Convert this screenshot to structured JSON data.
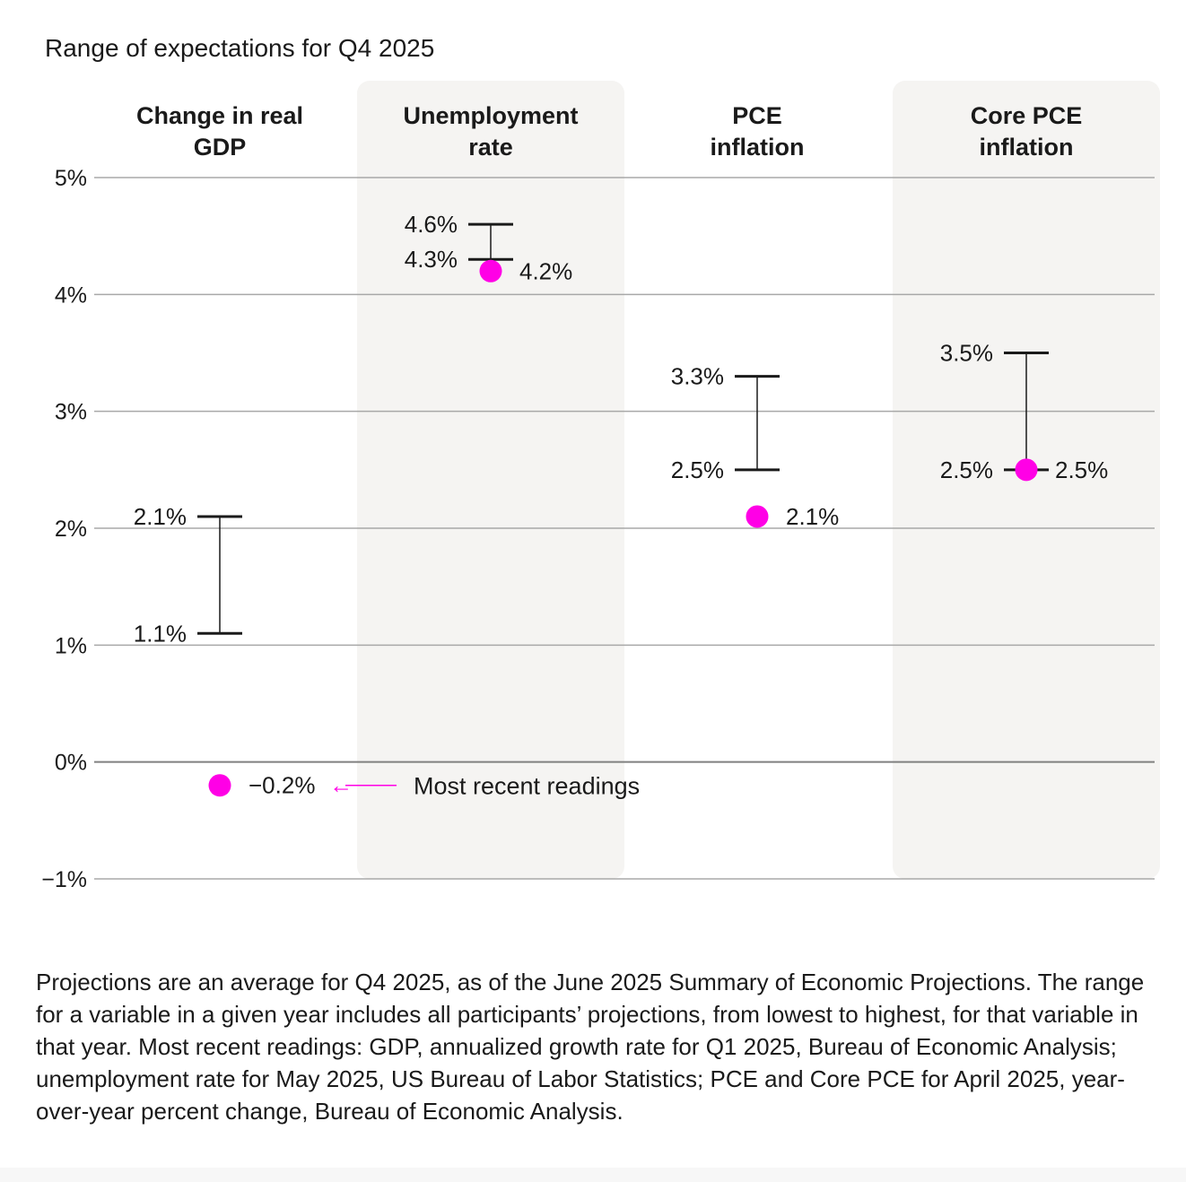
{
  "chart_data": {
    "type": "range",
    "title": "Range of expectations for Q4 2025",
    "ylim": [
      -1,
      5
    ],
    "yticks": [
      {
        "value": 5,
        "label": "5%"
      },
      {
        "value": 4,
        "label": "4%"
      },
      {
        "value": 3,
        "label": "3%"
      },
      {
        "value": 2,
        "label": "2%"
      },
      {
        "value": 1,
        "label": "1%"
      },
      {
        "value": 0,
        "label": "0%"
      },
      {
        "value": -1,
        "label": "−1%"
      }
    ],
    "grid": true,
    "categories": [
      {
        "name_lines": [
          "Change in real",
          "GDP"
        ],
        "shaded": false,
        "low": 1.1,
        "high": 2.1,
        "low_label": "1.1%",
        "high_label": "2.1%",
        "recent": -0.2,
        "recent_label": "−0.2%"
      },
      {
        "name_lines": [
          "Unemployment",
          "rate"
        ],
        "shaded": true,
        "low": 4.3,
        "high": 4.6,
        "low_label": "4.3%",
        "high_label": "4.6%",
        "recent": 4.2,
        "recent_label": "4.2%"
      },
      {
        "name_lines": [
          "PCE",
          "inflation"
        ],
        "shaded": false,
        "low": 2.5,
        "high": 3.3,
        "low_label": "2.5%",
        "high_label": "3.3%",
        "recent": 2.1,
        "recent_label": "2.1%"
      },
      {
        "name_lines": [
          "Core PCE",
          "inflation"
        ],
        "shaded": true,
        "low": 2.5,
        "high": 3.5,
        "low_label": "2.5%",
        "high_label": "3.5%",
        "recent": 2.5,
        "recent_label": "2.5%"
      }
    ],
    "annotation": {
      "text": "Most recent readings",
      "arrow": "←"
    },
    "colors": {
      "recent_dot": "#ff00e6",
      "range": "#1a1a1a",
      "shade": "#f5f4f2",
      "grid": "#a8a8a8",
      "zero_line": "#808080"
    }
  },
  "footnote": "Projections are an average for Q4 2025, as of the June 2025 Summary of Economic Projections. The range for a variable in a given year includes all participants’ projections, from lowest to highest, for that variable in that year. Most recent readings: GDP, annualized growth rate for Q1 2025, Bureau of Economic Analysis; unemployment rate for May 2025, US Bureau of Labor Statistics; PCE and Core PCE for April 2025, year-over-year percent change, Bureau of Economic Analysis."
}
